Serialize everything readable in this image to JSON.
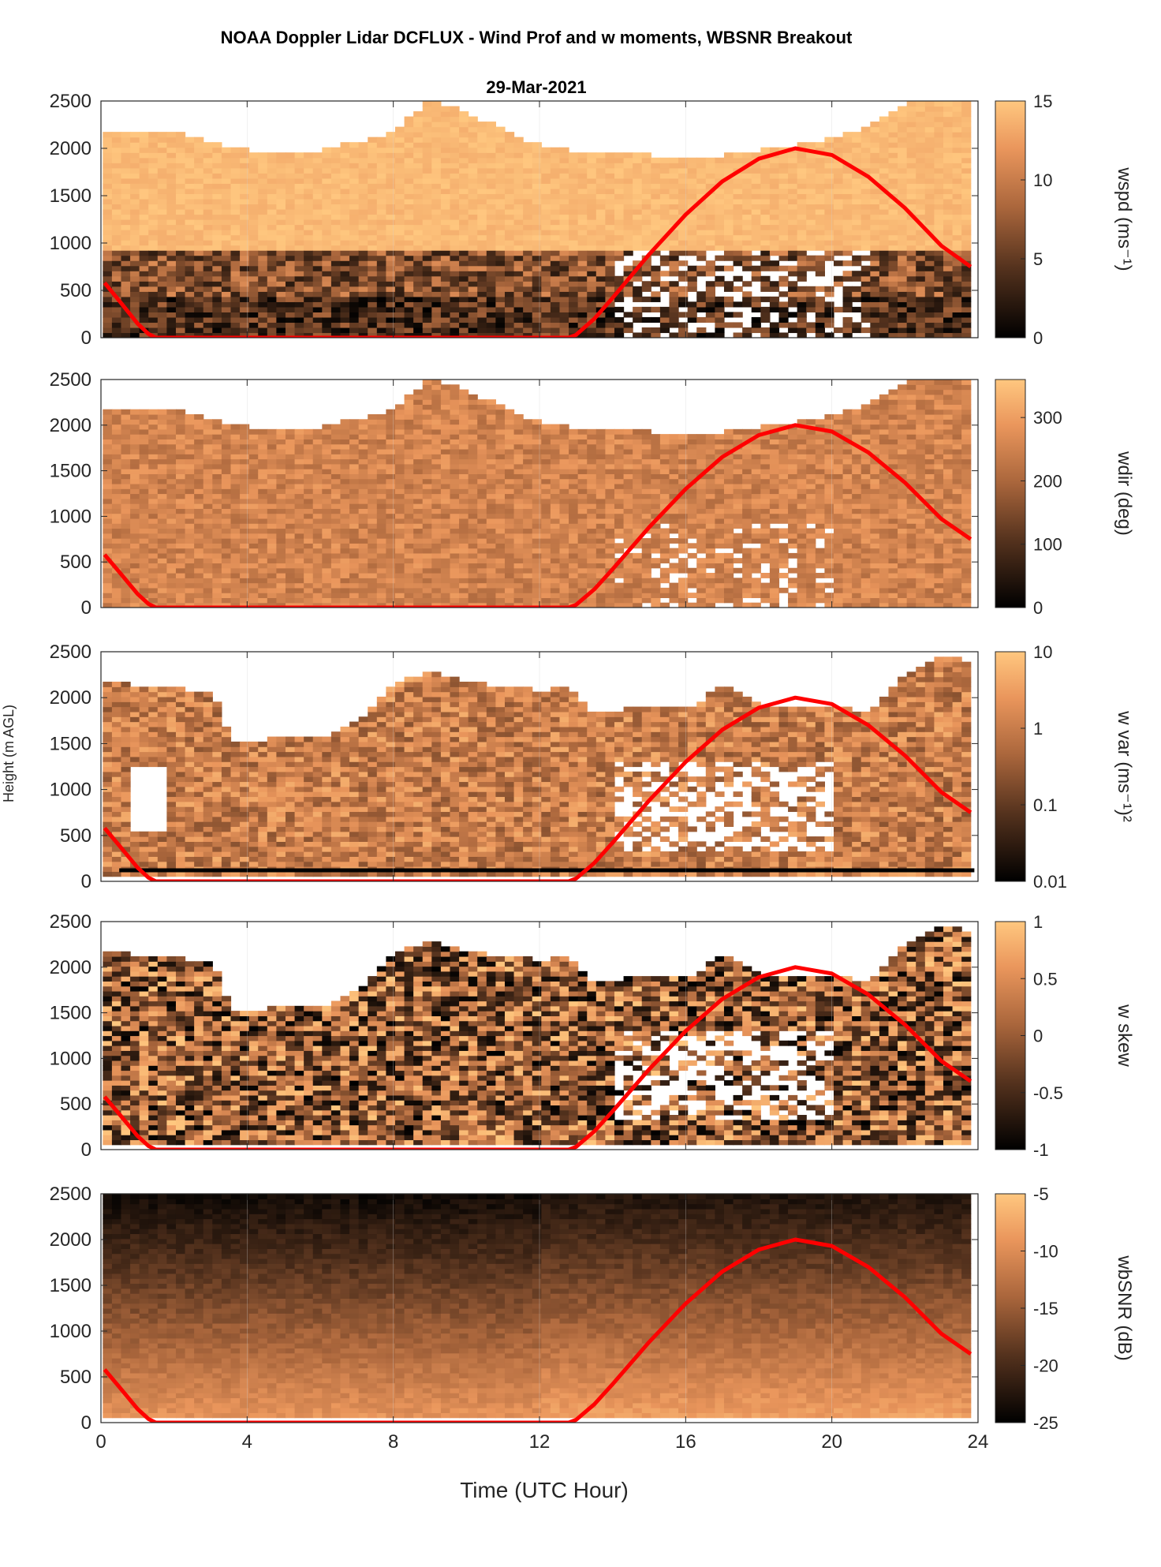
{
  "figure": {
    "title": "NOAA Doppler Lidar DCFLUX - Wind Prof and w moments, WBSNR Breakout",
    "subtitle": "29-Mar-2021",
    "shared_ylabel": "Height (m AGL)",
    "xlabel": "Time (UTC Hour)"
  },
  "colors": {
    "cmap_low": "#000000",
    "cmap_high": "#ffc77f",
    "sun_curve": "#ff0000",
    "axis": "#262626",
    "missing": "#ffffff"
  },
  "chart_data": [
    {
      "type": "heatmap",
      "id": "wspd",
      "colorbar_label": "wspd (ms⁻¹)",
      "xlim": [
        0,
        24
      ],
      "ylim": [
        0,
        2500
      ],
      "x_ticks": [
        0,
        4,
        8,
        12,
        16,
        20,
        24
      ],
      "show_x_tick_labels": false,
      "y_ticks": [
        0,
        500,
        1000,
        1500,
        2000,
        2500
      ],
      "clim": [
        0,
        15
      ],
      "scale": "linear",
      "cbar_ticks": [
        0,
        5,
        10,
        15
      ],
      "cbar_tick_labels": [
        "0",
        "5",
        "10",
        "15"
      ],
      "grid": true
    },
    {
      "type": "heatmap",
      "id": "wdir",
      "colorbar_label": "wdir (deg)",
      "xlim": [
        0,
        24
      ],
      "ylim": [
        0,
        2500
      ],
      "x_ticks": [
        0,
        4,
        8,
        12,
        16,
        20,
        24
      ],
      "show_x_tick_labels": false,
      "y_ticks": [
        0,
        500,
        1000,
        1500,
        2000,
        2500
      ],
      "clim": [
        0,
        360
      ],
      "scale": "linear",
      "cbar_ticks": [
        0,
        100,
        200,
        300
      ],
      "cbar_tick_labels": [
        "0",
        "100",
        "200",
        "300"
      ],
      "grid": true
    },
    {
      "type": "heatmap",
      "id": "wvar",
      "colorbar_label": "w var (ms⁻¹)²",
      "xlim": [
        0,
        24
      ],
      "ylim": [
        0,
        2500
      ],
      "x_ticks": [
        0,
        4,
        8,
        12,
        16,
        20,
        24
      ],
      "show_x_tick_labels": false,
      "y_ticks": [
        0,
        500,
        1000,
        1500,
        2000,
        2500
      ],
      "clim": [
        0.01,
        10
      ],
      "scale": "log",
      "cbar_ticks": [
        0.01,
        0.1,
        1,
        10
      ],
      "cbar_tick_labels": [
        "0.01",
        "0.1",
        "1",
        "10"
      ],
      "grid": true
    },
    {
      "type": "heatmap",
      "id": "wskew",
      "colorbar_label": "w skew",
      "xlim": [
        0,
        24
      ],
      "ylim": [
        0,
        2500
      ],
      "x_ticks": [
        0,
        4,
        8,
        12,
        16,
        20,
        24
      ],
      "show_x_tick_labels": false,
      "y_ticks": [
        0,
        500,
        1000,
        1500,
        2000,
        2500
      ],
      "clim": [
        -1,
        1
      ],
      "scale": "linear",
      "cbar_ticks": [
        -1,
        -0.5,
        0,
        0.5,
        1
      ],
      "cbar_tick_labels": [
        "-1",
        "-0.5",
        "0",
        "0.5",
        "1"
      ],
      "grid": true
    },
    {
      "type": "heatmap",
      "id": "wbsnr",
      "colorbar_label": "wbSNR (dB)",
      "xlim": [
        0,
        24
      ],
      "ylim": [
        0,
        2500
      ],
      "x_ticks": [
        0,
        4,
        8,
        12,
        16,
        20,
        24
      ],
      "x_tick_labels": [
        "0",
        "4",
        "8",
        "12",
        "16",
        "20",
        "24"
      ],
      "show_x_tick_labels": true,
      "y_ticks": [
        0,
        500,
        1000,
        1500,
        2000,
        2500
      ],
      "clim": [
        -25,
        -5
      ],
      "scale": "linear",
      "cbar_ticks": [
        -25,
        -20,
        -15,
        -10,
        -5
      ],
      "cbar_tick_labels": [
        "-25",
        "-20",
        "-15",
        "-10",
        "-5"
      ],
      "grid": true
    }
  ],
  "sun_curve": {
    "x": [
      0.1,
      0.5,
      1.0,
      1.3,
      1.5,
      12.8,
      13.0,
      13.5,
      14.0,
      15.0,
      16.0,
      17.0,
      18.0,
      19.0,
      20.0,
      21.0,
      22.0,
      23.0,
      23.8
    ],
    "y": [
      580,
      390,
      150,
      40,
      0,
      0,
      30,
      200,
      420,
      880,
      1300,
      1650,
      1890,
      2000,
      1930,
      1700,
      1370,
      970,
      750
    ]
  }
}
